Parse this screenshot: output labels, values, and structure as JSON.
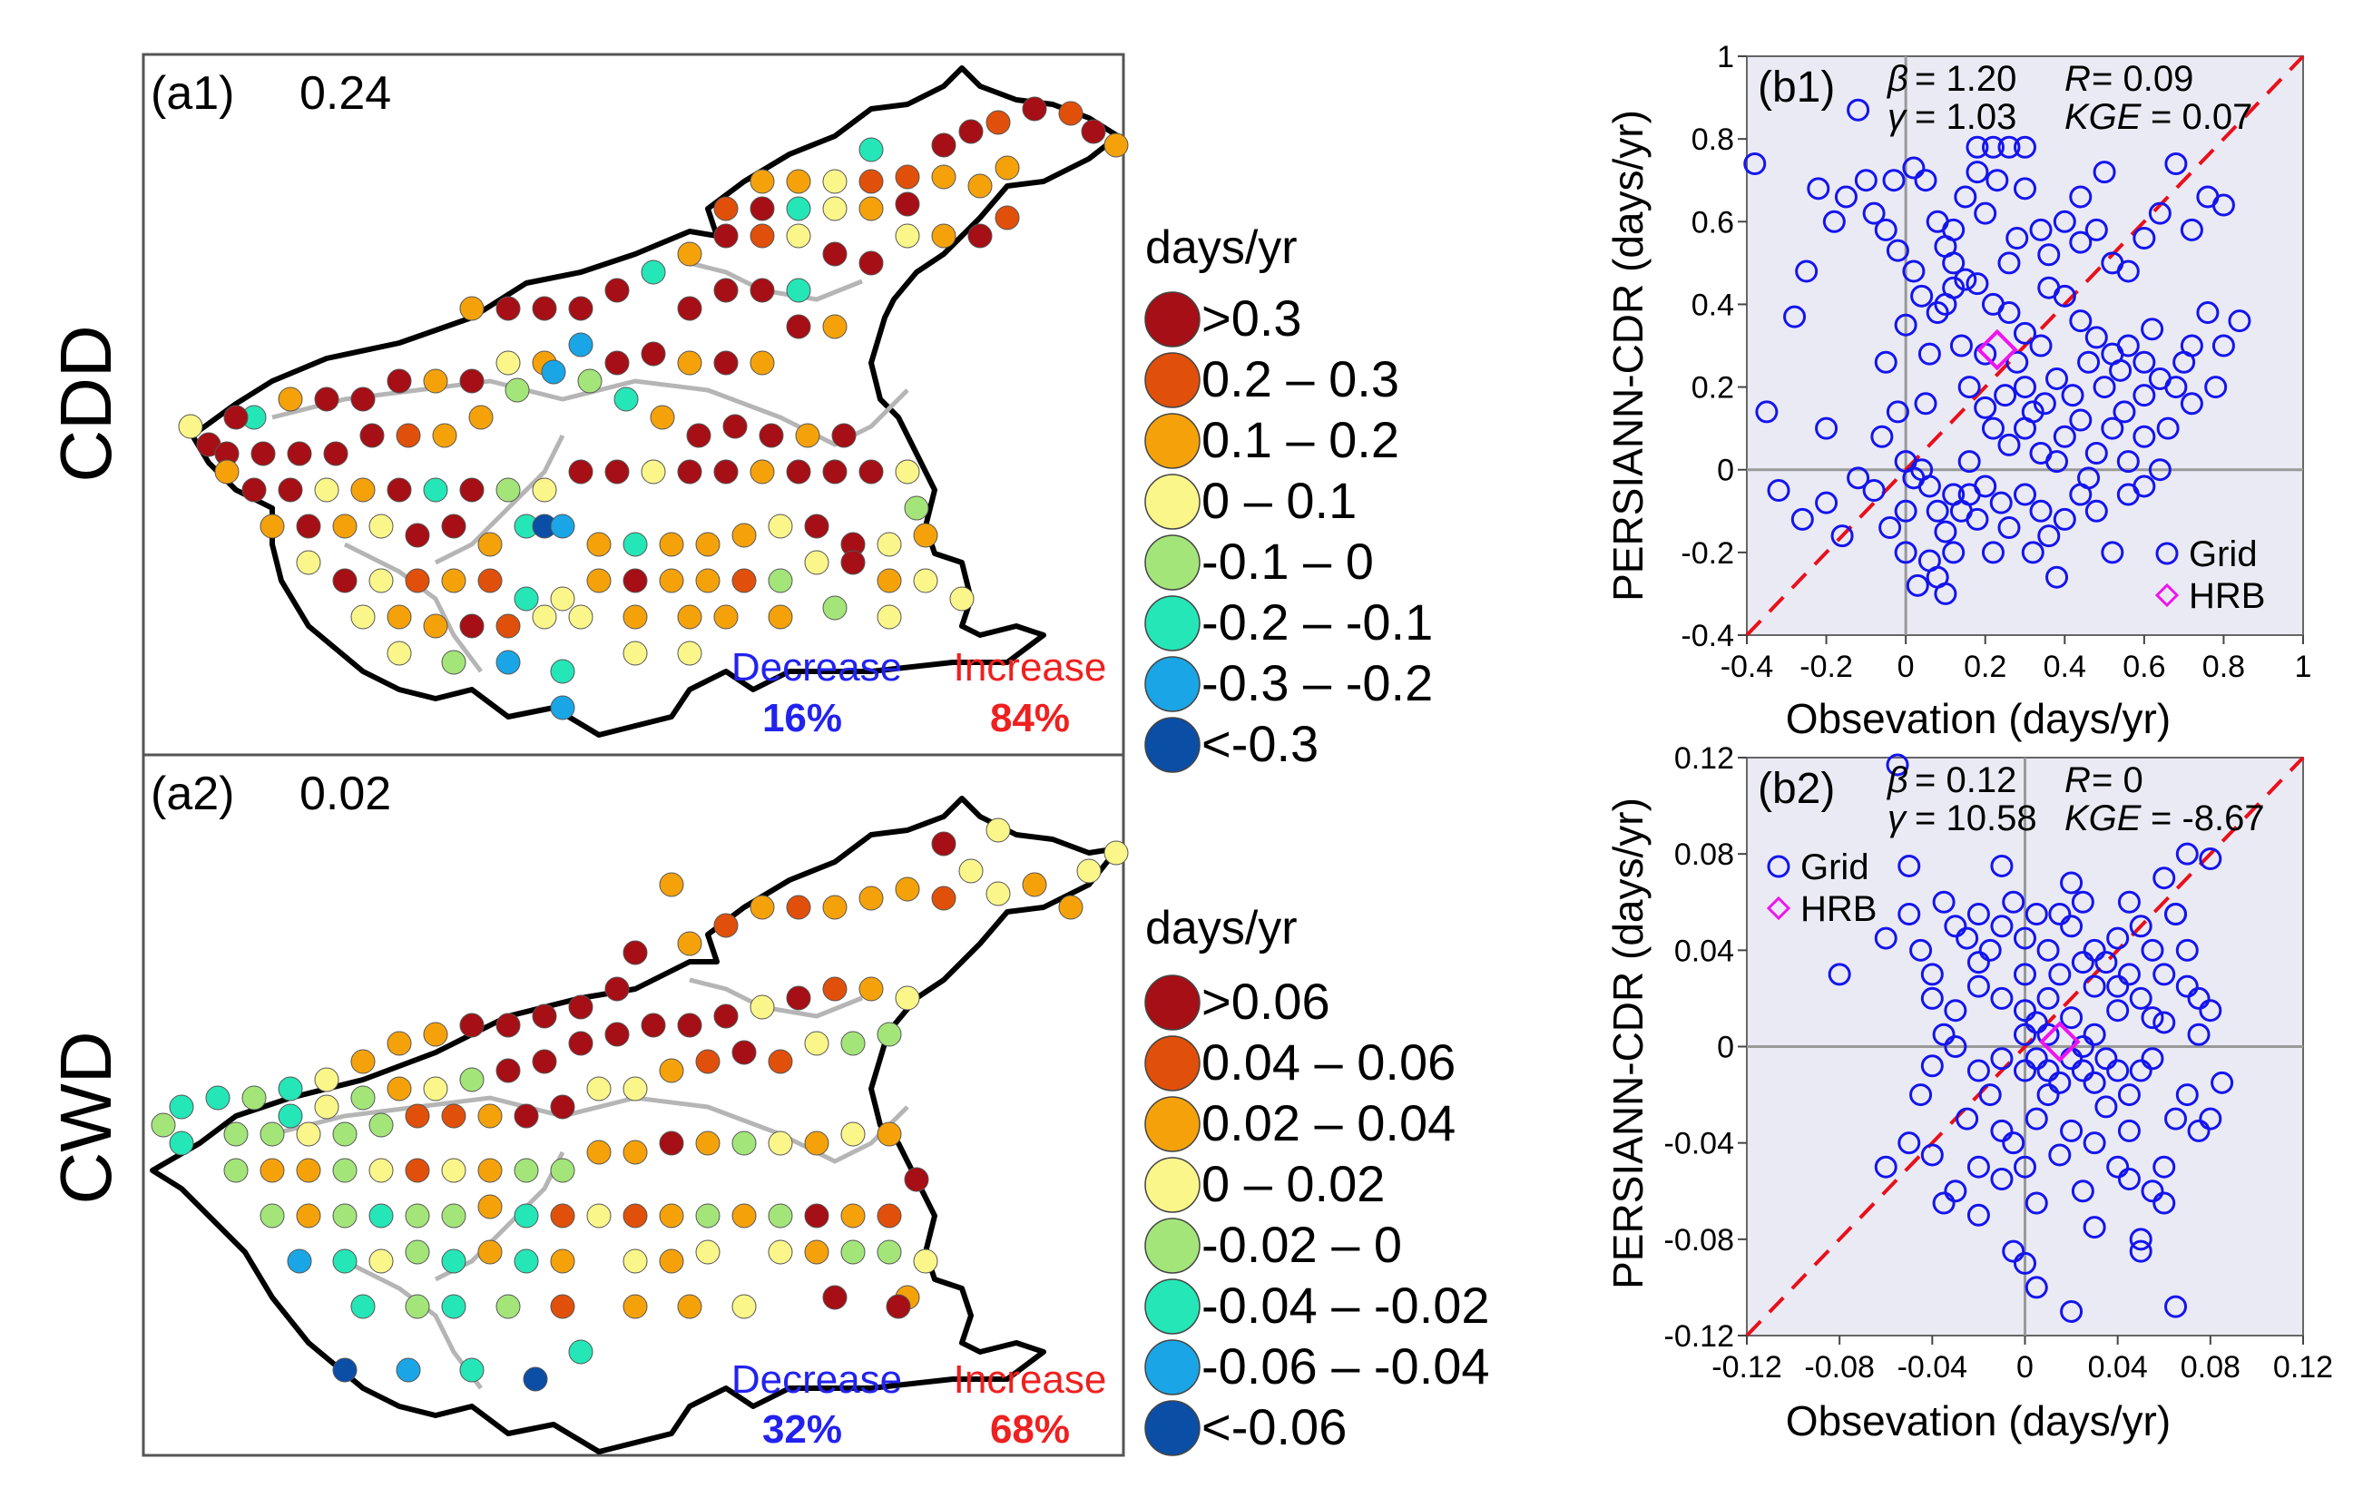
{
  "figure": {
    "row_labels": [
      "CDD",
      "CWD"
    ],
    "legend_unit": "days/yr"
  },
  "colors": {
    "c1": "#a50f15",
    "c2": "#e0500a",
    "c3": "#f5a20a",
    "c4": "#fbf68a",
    "c5": "#a4e57a",
    "c6": "#25e6b6",
    "c7": "#1aa6e6",
    "c8": "#0b4ea6",
    "scatter_points": "#1414ee",
    "hrb_marker": "#ee14ee",
    "one_to_one": "#e8101a",
    "decrease": "#2222ee",
    "increase": "#ee2020",
    "plot_bg": "#eaeaf4"
  },
  "maps": [
    {
      "panel": "(a1)",
      "value": "0.24",
      "decrease_label": "Decrease",
      "decrease_pct": "16%",
      "increase_label": "Increase",
      "increase_pct": "84%",
      "legend": [
        ">0.3",
        "0.2 – 0.3",
        "0.1 – 0.2",
        "0 – 0.1",
        "-0.1 – 0",
        "-0.2 – -0.1",
        "-0.3 – -0.2",
        "<-0.3"
      ]
    },
    {
      "panel": "(a2)",
      "value": "0.02",
      "decrease_label": "Decrease",
      "decrease_pct": "32%",
      "increase_label": "Increase",
      "increase_pct": "68%",
      "legend": [
        ">0.06",
        "0.04 – 0.06",
        "0.02 – 0.04",
        "0 – 0.02",
        "-0.02 – 0",
        "-0.04 – -0.02",
        "-0.06 – -0.04",
        "<-0.06"
      ]
    }
  ],
  "chart_data": [
    {
      "type": "scatter",
      "panel": "(b1)",
      "xlabel": "Obsevation (days/yr)",
      "ylabel": "PERSIANN-CDR (days/yr)",
      "xlim": [
        -0.4,
        1
      ],
      "ylim": [
        -0.4,
        1
      ],
      "xticks": [
        "-0.4",
        "-0.2",
        "0",
        "0.2",
        "0.4",
        "0.6",
        "0.8",
        "1"
      ],
      "yticks": [
        "-0.4",
        "-0.2",
        "0",
        "0.2",
        "0.4",
        "0.6",
        "0.8",
        "1"
      ],
      "stats": {
        "beta_sym": "β",
        "beta": "= 1.20",
        "r_sym": "R",
        "r": "= 0.09",
        "gamma_sym": "γ",
        "gamma": "= 1.03",
        "kge_sym": "KGE",
        "kge": "= 0.07"
      },
      "legend": [
        "Grid",
        "HRB"
      ],
      "legend_position": "bottom-right",
      "hrb": [
        0.23,
        0.29
      ],
      "grid_points": [
        [
          -0.38,
          0.74
        ],
        [
          -0.12,
          0.87
        ],
        [
          -0.28,
          0.37
        ],
        [
          -0.35,
          0.14
        ],
        [
          -0.2,
          0.1
        ],
        [
          -0.25,
          0.48
        ],
        [
          -0.22,
          0.68
        ],
        [
          -0.18,
          0.6
        ],
        [
          -0.15,
          0.66
        ],
        [
          -0.1,
          0.7
        ],
        [
          -0.08,
          0.62
        ],
        [
          -0.05,
          0.58
        ],
        [
          -0.03,
          0.7
        ],
        [
          0.02,
          0.73
        ],
        [
          0.05,
          0.7
        ],
        [
          0.08,
          0.6
        ],
        [
          0.1,
          0.54
        ],
        [
          0.12,
          0.58
        ],
        [
          0.15,
          0.66
        ],
        [
          0.18,
          0.72
        ],
        [
          0.2,
          0.62
        ],
        [
          0.23,
          0.7
        ],
        [
          0.15,
          0.46
        ],
        [
          0.12,
          0.44
        ],
        [
          0.08,
          0.38
        ],
        [
          0.04,
          0.42
        ],
        [
          0.0,
          0.35
        ],
        [
          -0.02,
          0.53
        ],
        [
          0.02,
          0.48
        ],
        [
          0.06,
          0.28
        ],
        [
          0.1,
          0.4
        ],
        [
          0.14,
          0.3
        ],
        [
          0.18,
          0.45
        ],
        [
          0.22,
          0.4
        ],
        [
          0.26,
          0.38
        ],
        [
          0.3,
          0.33
        ],
        [
          0.34,
          0.3
        ],
        [
          0.36,
          0.44
        ],
        [
          0.4,
          0.42
        ],
        [
          0.44,
          0.36
        ],
        [
          0.48,
          0.32
        ],
        [
          0.52,
          0.28
        ],
        [
          0.56,
          0.3
        ],
        [
          0.6,
          0.26
        ],
        [
          0.64,
          0.22
        ],
        [
          0.68,
          0.2
        ],
        [
          0.72,
          0.3
        ],
        [
          0.76,
          0.38
        ],
        [
          0.8,
          0.3
        ],
        [
          0.84,
          0.36
        ],
        [
          0.4,
          0.6
        ],
        [
          0.44,
          0.55
        ],
        [
          0.48,
          0.58
        ],
        [
          0.52,
          0.5
        ],
        [
          0.56,
          0.48
        ],
        [
          0.6,
          0.56
        ],
        [
          0.64,
          0.62
        ],
        [
          0.68,
          0.74
        ],
        [
          0.72,
          0.58
        ],
        [
          0.76,
          0.66
        ],
        [
          0.8,
          0.64
        ],
        [
          0.3,
          0.68
        ],
        [
          0.34,
          0.58
        ],
        [
          0.28,
          0.56
        ],
        [
          0.26,
          0.5
        ],
        [
          0.2,
          0.28
        ],
        [
          0.16,
          0.2
        ],
        [
          0.2,
          0.15
        ],
        [
          0.25,
          0.18
        ],
        [
          0.3,
          0.2
        ],
        [
          0.35,
          0.16
        ],
        [
          0.38,
          0.22
        ],
        [
          0.42,
          0.18
        ],
        [
          0.46,
          0.26
        ],
        [
          0.5,
          0.2
        ],
        [
          0.55,
          0.14
        ],
        [
          0.6,
          0.18
        ],
        [
          0.66,
          0.1
        ],
        [
          0.72,
          0.16
        ],
        [
          0.78,
          0.2
        ],
        [
          -0.32,
          -0.05
        ],
        [
          -0.26,
          -0.12
        ],
        [
          -0.2,
          -0.08
        ],
        [
          -0.16,
          -0.16
        ],
        [
          -0.12,
          -0.02
        ],
        [
          -0.08,
          -0.05
        ],
        [
          -0.06,
          0.08
        ],
        [
          -0.02,
          0.14
        ],
        [
          0.0,
          0.02
        ],
        [
          0.02,
          -0.02
        ],
        [
          0.04,
          0.0
        ],
        [
          0.06,
          -0.04
        ],
        [
          0.08,
          -0.1
        ],
        [
          0.1,
          -0.15
        ],
        [
          0.12,
          -0.2
        ],
        [
          0.14,
          -0.1
        ],
        [
          0.16,
          -0.06
        ],
        [
          0.18,
          -0.12
        ],
        [
          0.2,
          -0.04
        ],
        [
          0.22,
          -0.2
        ],
        [
          0.24,
          -0.08
        ],
        [
          0.26,
          -0.14
        ],
        [
          0.3,
          -0.06
        ],
        [
          0.32,
          -0.2
        ],
        [
          0.34,
          -0.1
        ],
        [
          0.36,
          -0.16
        ],
        [
          0.38,
          -0.26
        ],
        [
          0.4,
          -0.12
        ],
        [
          0.44,
          -0.06
        ],
        [
          0.48,
          -0.1
        ],
        [
          0.52,
          -0.2
        ],
        [
          0.56,
          -0.06
        ],
        [
          0.6,
          -0.04
        ],
        [
          0.03,
          -0.28
        ],
        [
          0.06,
          -0.22
        ],
        [
          0.08,
          -0.26
        ],
        [
          0.1,
          -0.3
        ],
        [
          0.12,
          -0.06
        ],
        [
          0.0,
          -0.1
        ],
        [
          -0.04,
          -0.14
        ],
        [
          0.4,
          0.08
        ],
        [
          0.44,
          0.12
        ],
        [
          0.48,
          0.04
        ],
        [
          0.52,
          0.1
        ],
        [
          0.56,
          0.02
        ],
        [
          0.6,
          0.08
        ],
        [
          0.64,
          0.0
        ],
        [
          0.26,
          0.06
        ],
        [
          0.3,
          0.1
        ],
        [
          0.34,
          0.04
        ],
        [
          0.18,
          0.78
        ],
        [
          0.22,
          0.78
        ],
        [
          0.26,
          0.78
        ],
        [
          0.3,
          0.78
        ],
        [
          0.5,
          0.72
        ],
        [
          0.44,
          0.66
        ],
        [
          0.36,
          0.52
        ],
        [
          0.12,
          0.5
        ],
        [
          0.05,
          0.16
        ],
        [
          -0.05,
          0.26
        ],
        [
          0.0,
          -0.2
        ],
        [
          0.16,
          0.02
        ],
        [
          0.22,
          0.1
        ],
        [
          0.28,
          0.26
        ],
        [
          0.32,
          0.14
        ],
        [
          0.38,
          0.02
        ],
        [
          0.46,
          -0.02
        ],
        [
          0.54,
          0.24
        ],
        [
          0.62,
          0.34
        ],
        [
          0.7,
          0.26
        ]
      ]
    },
    {
      "type": "scatter",
      "panel": "(b2)",
      "xlabel": "Obsevation (days/yr)",
      "ylabel": "PERSIANN-CDR (days/yr)",
      "xlim": [
        -0.12,
        0.12
      ],
      "ylim": [
        -0.12,
        0.12
      ],
      "xticks": [
        "-0.12",
        "-0.08",
        "-0.04",
        "0",
        "0.04",
        "0.08",
        "0.12"
      ],
      "yticks": [
        "-0.12",
        "-0.08",
        "-0.04",
        "0",
        "0.04",
        "0.08",
        "0.12"
      ],
      "stats": {
        "beta_sym": "β",
        "beta": "= 0.12",
        "r_sym": "R",
        "r": "= 0",
        "gamma_sym": "γ",
        "gamma": "= 10.58",
        "kge_sym": "KGE",
        "kge": "= -8.67"
      },
      "legend": [
        "Grid",
        "HRB"
      ],
      "legend_position": "top-left",
      "hrb": [
        0.015,
        0.002
      ],
      "grid_points": [
        [
          -0.055,
          0.117
        ],
        [
          -0.08,
          0.03
        ],
        [
          -0.06,
          0.045
        ],
        [
          -0.05,
          0.055
        ],
        [
          -0.045,
          0.04
        ],
        [
          -0.04,
          0.03
        ],
        [
          -0.035,
          0.06
        ],
        [
          -0.03,
          0.05
        ],
        [
          -0.025,
          0.045
        ],
        [
          -0.02,
          0.055
        ],
        [
          -0.015,
          0.04
        ],
        [
          -0.01,
          0.05
        ],
        [
          -0.005,
          0.06
        ],
        [
          0.0,
          0.045
        ],
        [
          0.005,
          0.055
        ],
        [
          0.01,
          0.04
        ],
        [
          0.015,
          0.03
        ],
        [
          0.02,
          0.05
        ],
        [
          0.025,
          0.06
        ],
        [
          0.03,
          0.04
        ],
        [
          0.035,
          0.035
        ],
        [
          0.04,
          0.045
        ],
        [
          0.045,
          0.03
        ],
        [
          0.05,
          0.05
        ],
        [
          0.055,
          0.04
        ],
        [
          0.06,
          0.03
        ],
        [
          0.065,
          0.055
        ],
        [
          0.07,
          0.04
        ],
        [
          0.075,
          0.02
        ],
        [
          0.08,
          0.015
        ],
        [
          -0.04,
          0.02
        ],
        [
          -0.03,
          0.015
        ],
        [
          -0.02,
          0.025
        ],
        [
          -0.01,
          0.02
        ],
        [
          0.0,
          0.015
        ],
        [
          0.01,
          0.02
        ],
        [
          0.02,
          0.012
        ],
        [
          0.03,
          0.025
        ],
        [
          0.04,
          0.015
        ],
        [
          0.05,
          0.02
        ],
        [
          0.06,
          0.01
        ],
        [
          0.07,
          0.025
        ],
        [
          -0.06,
          -0.05
        ],
        [
          -0.05,
          -0.04
        ],
        [
          -0.04,
          -0.045
        ],
        [
          -0.03,
          -0.06
        ],
        [
          -0.025,
          -0.03
        ],
        [
          -0.02,
          -0.05
        ],
        [
          -0.015,
          -0.02
        ],
        [
          -0.01,
          -0.035
        ],
        [
          -0.005,
          -0.04
        ],
        [
          0.0,
          -0.05
        ],
        [
          0.005,
          -0.03
        ],
        [
          0.01,
          -0.02
        ],
        [
          0.015,
          -0.045
        ],
        [
          0.02,
          -0.035
        ],
        [
          0.025,
          -0.06
        ],
        [
          0.03,
          -0.04
        ],
        [
          0.035,
          -0.025
        ],
        [
          0.04,
          -0.05
        ],
        [
          0.045,
          -0.035
        ],
        [
          0.05,
          -0.08
        ],
        [
          0.055,
          -0.06
        ],
        [
          0.06,
          -0.05
        ],
        [
          0.065,
          -0.03
        ],
        [
          0.07,
          -0.02
        ],
        [
          0.075,
          -0.035
        ],
        [
          0.08,
          -0.03
        ],
        [
          0.085,
          -0.015
        ],
        [
          0.0,
          -0.09
        ],
        [
          0.02,
          -0.11
        ],
        [
          0.065,
          -0.108
        ],
        [
          0.005,
          -0.1
        ],
        [
          -0.005,
          -0.085
        ],
        [
          0.05,
          -0.085
        ],
        [
          0.0,
          -0.01
        ],
        [
          0.005,
          -0.005
        ],
        [
          0.01,
          -0.01
        ],
        [
          0.015,
          -0.015
        ],
        [
          0.02,
          -0.005
        ],
        [
          0.025,
          -0.01
        ],
        [
          0.03,
          -0.015
        ],
        [
          0.035,
          -0.005
        ],
        [
          0.04,
          -0.01
        ],
        [
          0.045,
          -0.02
        ],
        [
          0.05,
          -0.01
        ],
        [
          0.055,
          -0.005
        ],
        [
          -0.03,
          0.0
        ],
        [
          -0.02,
          -0.01
        ],
        [
          -0.01,
          -0.005
        ],
        [
          0.0,
          0.005
        ],
        [
          0.005,
          0.01
        ],
        [
          0.01,
          0.005
        ],
        [
          0.025,
          0.0
        ],
        [
          0.03,
          0.005
        ],
        [
          -0.05,
          0.075
        ],
        [
          -0.01,
          0.075
        ],
        [
          0.02,
          0.068
        ],
        [
          0.045,
          0.06
        ],
        [
          0.06,
          0.07
        ],
        [
          0.065,
          0.055
        ],
        [
          0.07,
          0.08
        ],
        [
          0.08,
          0.078
        ],
        [
          -0.035,
          -0.065
        ],
        [
          -0.02,
          -0.07
        ],
        [
          -0.01,
          -0.055
        ],
        [
          0.005,
          -0.065
        ],
        [
          0.03,
          -0.075
        ],
        [
          0.045,
          -0.055
        ],
        [
          0.06,
          -0.065
        ],
        [
          -0.045,
          -0.02
        ],
        [
          -0.04,
          -0.008
        ],
        [
          -0.02,
          0.035
        ],
        [
          0.015,
          0.055
        ],
        [
          0.025,
          0.035
        ],
        [
          0.04,
          0.025
        ],
        [
          0.055,
          0.012
        ],
        [
          0.075,
          0.005
        ],
        [
          -0.035,
          0.005
        ],
        [
          0.0,
          0.03
        ]
      ]
    }
  ]
}
